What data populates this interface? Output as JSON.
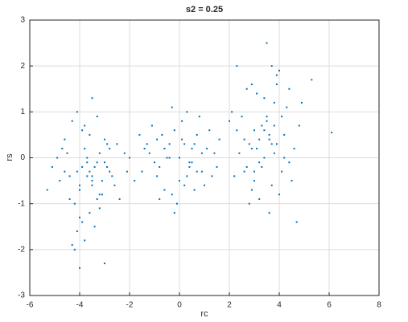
{
  "chart_data": {
    "type": "scatter",
    "title": "s2 = 0.25",
    "xlabel": "rc",
    "ylabel": "rs",
    "color": "#0072bd",
    "grid": true,
    "xlim": [
      -6,
      8
    ],
    "ylim": [
      -3,
      3
    ],
    "xticks": [
      -6,
      -4,
      -2,
      0,
      2,
      4,
      6,
      8
    ],
    "yticks": [
      -3,
      -2,
      -1,
      0,
      1,
      2,
      3
    ],
    "x": [
      -4.1,
      -3.8,
      -3.5,
      -3.2,
      -2.9,
      -4.4,
      -3.6,
      -3.0,
      -4.0,
      -3.3,
      -4.6,
      -3.9,
      -2.7,
      -3.4,
      -4.2,
      -3.7,
      -5.1,
      -2.5,
      -3.1,
      -4.3,
      -3.5,
      -3.8,
      -4.0,
      -2.8,
      -4.5,
      -3.6,
      -3.2,
      -4.8,
      -2.6,
      -3.9,
      -4.1,
      -3.4,
      -3.0,
      -4.7,
      -3.3,
      -2.9,
      -4.2,
      -3.7,
      -5.3,
      -2.2,
      -3.6,
      -4.0,
      -3.1,
      -4.4,
      -3.8,
      -2.4,
      -3.5,
      -4.9,
      -3.0,
      -4.1,
      -3.5,
      -3.9,
      -4.3,
      -2.8,
      -3.2,
      -4.6,
      -3.7,
      -2.1,
      -4.0,
      -3.3,
      -1.2,
      -0.8,
      -0.4,
      0.0,
      0.3,
      0.7,
      1.1,
      -1.5,
      -0.2,
      0.5,
      -0.9,
      0.2,
      0.9,
      -0.6,
      1.4,
      -1.8,
      0.1,
      -0.3,
      0.6,
      1.0,
      -1.1,
      -0.5,
      0.4,
      0.8,
      -1.4,
      -0.1,
      1.3,
      -0.7,
      0.2,
      -1.0,
      0.6,
      -0.3,
      1.6,
      -2.0,
      0.0,
      0.9,
      -0.8,
      0.3,
      -1.3,
      0.7,
      -0.4,
      1.2,
      -0.9,
      0.5,
      -0.2,
      1.5,
      -1.6,
      0.1,
      -0.6,
      0.4,
      3.5,
      3.8,
      2.9,
      3.2,
      4.1,
      2.6,
      3.6,
      4.4,
      2.3,
      3.0,
      3.9,
      3.4,
      2.8,
      4.2,
      3.7,
      2.1,
      3.3,
      4.6,
      2.7,
      3.1,
      3.8,
      4.0,
      2.5,
      3.5,
      4.3,
      2.2,
      3.6,
      2.9,
      4.8,
      3.2,
      3.9,
      2.4,
      3.7,
      4.1,
      3.0,
      2.8,
      3.4,
      4.5,
      2.6,
      3.8,
      3.3,
      4.0,
      2.0,
      3.6,
      4.2,
      2.7,
      3.1,
      4.7,
      3.5,
      2.9,
      3.9,
      3.2,
      4.4,
      2.3,
      3.7,
      4.9,
      3.0,
      3.4,
      6.1,
      5.3
    ],
    "values": [
      -0.3,
      0.2,
      -0.5,
      0.1,
      -0.2,
      -0.9,
      -1.2,
      0.4,
      -0.6,
      -0.1,
      -0.3,
      0.6,
      -0.4,
      -1.5,
      -1.0,
      0.0,
      -0.2,
      0.3,
      -0.8,
      0.8,
      -0.4,
      -1.8,
      -0.7,
      -0.3,
      0.1,
      0.5,
      -1.1,
      -0.5,
      -0.6,
      -1.4,
      1.0,
      -0.2,
      -2.3,
      0.2,
      -0.9,
      0.3,
      -2.0,
      -0.1,
      -0.7,
      0.1,
      -0.3,
      -1.3,
      -0.5,
      -0.4,
      0.7,
      -0.9,
      1.3,
      0.0,
      -0.1,
      -1.6,
      -0.6,
      -0.2,
      -1.9,
      0.2,
      -0.8,
      0.4,
      -0.4,
      -0.3,
      -2.4,
      0.9,
      0.1,
      -0.2,
      0.3,
      0.0,
      -0.4,
      0.5,
      0.2,
      -0.3,
      0.6,
      -0.1,
      0.4,
      -0.6,
      -0.3,
      0.2,
      0.1,
      -0.5,
      0.8,
      -0.8,
      0.3,
      -0.6,
      0.7,
      0.0,
      -0.2,
      0.9,
      0.2,
      -1.0,
      -0.4,
      0.5,
      0.3,
      -0.1,
      -0.7,
      1.1,
      0.4,
      0.0,
      -0.5,
      0.1,
      -0.9,
      1.0,
      0.3,
      -0.3,
      0.0,
      0.6,
      -0.4,
      0.2,
      -1.2,
      -0.2,
      0.5,
      0.4,
      -0.7,
      -0.1,
      0.8,
      1.2,
      0.2,
      -0.1,
      0.9,
      -0.3,
      0.4,
      1.5,
      0.6,
      -0.5,
      1.8,
      0.0,
      0.3,
      0.5,
      -0.6,
      1.0,
      0.7,
      0.2,
      -0.2,
      1.4,
      0.1,
      -0.8,
      0.9,
      2.5,
      1.1,
      -0.4,
      0.5,
      1.6,
      0.7,
      -0.9,
      0.3,
      0.1,
      2.0,
      -0.3,
      0.6,
      -1.0,
      1.3,
      -0.5,
      0.4,
      0.7,
      -0.2,
      1.9,
      0.8,
      -1.2,
      0.0,
      1.5,
      0.2,
      -1.4,
      0.9,
      -0.7,
      1.6,
      0.4,
      -0.1,
      2.0,
      0.3,
      1.2,
      -0.3,
      0.6,
      0.55,
      1.7
    ]
  }
}
